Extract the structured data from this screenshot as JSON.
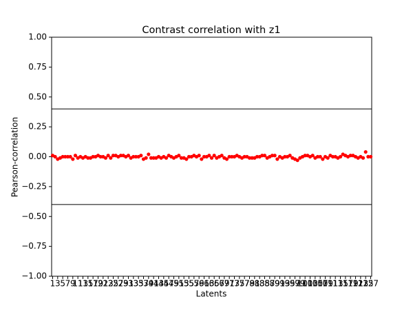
{
  "chart_data": {
    "type": "scatter",
    "title": "Contrast correlation with z1",
    "x_label": "Latents",
    "y_label": "Pearson-correlation",
    "x": [
      1,
      2,
      3,
      4,
      5,
      6,
      7,
      8,
      9,
      10,
      11,
      12,
      13,
      14,
      15,
      16,
      17,
      18,
      19,
      20,
      21,
      22,
      23,
      24,
      25,
      26,
      27,
      28,
      29,
      30,
      31,
      32,
      33,
      34,
      35,
      36,
      37,
      38,
      39,
      40,
      41,
      42,
      43,
      44,
      45,
      46,
      47,
      48,
      49,
      50,
      51,
      52,
      53,
      54,
      55,
      56,
      57,
      58,
      59,
      60,
      61,
      62,
      63,
      64,
      65,
      66,
      67,
      68,
      69,
      70,
      71,
      72,
      73,
      74,
      75,
      76,
      77,
      78,
      79,
      80,
      81,
      82,
      83,
      84,
      85,
      86,
      87,
      88,
      89,
      90,
      91,
      92,
      93,
      94,
      95,
      96,
      97,
      98,
      99,
      100,
      101,
      102,
      103,
      104,
      105,
      106,
      107,
      108,
      109,
      110,
      111,
      112,
      113,
      114,
      115,
      116,
      117,
      118,
      119,
      120,
      121,
      122,
      123,
      124,
      125,
      126,
      127
    ],
    "values": [
      0.01,
      0.0,
      -0.02,
      -0.01,
      0.0,
      0.0,
      0.0,
      0.0,
      -0.02,
      0.01,
      -0.01,
      0.0,
      -0.01,
      0.0,
      -0.01,
      -0.01,
      0.0,
      0.0,
      0.01,
      0.0,
      0.0,
      -0.01,
      0.01,
      -0.01,
      0.01,
      0.01,
      0.0,
      0.01,
      0.01,
      0.0,
      0.01,
      -0.01,
      0.0,
      0.0,
      0.0,
      0.01,
      -0.02,
      -0.01,
      0.02,
      -0.01,
      -0.01,
      -0.01,
      0.0,
      -0.01,
      0.0,
      -0.01,
      0.01,
      0.0,
      -0.01,
      0.0,
      0.01,
      -0.01,
      -0.01,
      -0.02,
      0.0,
      0.0,
      0.01,
      0.0,
      0.01,
      -0.02,
      0.0,
      0.0,
      0.01,
      -0.01,
      0.01,
      -0.01,
      0.0,
      0.01,
      -0.01,
      -0.02,
      0.0,
      0.0,
      0.0,
      0.01,
      0.0,
      -0.01,
      0.0,
      0.0,
      -0.01,
      -0.01,
      -0.01,
      0.0,
      0.0,
      0.01,
      0.01,
      -0.01,
      0.0,
      0.01,
      0.01,
      -0.02,
      0.0,
      -0.01,
      0.0,
      0.0,
      0.01,
      -0.01,
      -0.02,
      -0.03,
      -0.01,
      0.0,
      0.01,
      0.01,
      0.0,
      0.01,
      -0.01,
      0.0,
      0.0,
      -0.02,
      0.0,
      -0.01,
      0.01,
      0.0,
      0.0,
      -0.01,
      0.0,
      0.02,
      0.01,
      0.0,
      0.01,
      0.01,
      0.0,
      -0.01,
      0.0,
      -0.01,
      0.04,
      0.0,
      0.0
    ],
    "color": "#ff0000",
    "reference_lines": [
      0.4,
      -0.4
    ],
    "xlim": [
      0.6,
      127.4
    ],
    "xticks": [
      1,
      3,
      5,
      7,
      9,
      11,
      13,
      15,
      17,
      19,
      21,
      23,
      25,
      27,
      29,
      31,
      33,
      35,
      37,
      39,
      41,
      43,
      45,
      47,
      49,
      51,
      53,
      55,
      57,
      59,
      61,
      63,
      65,
      67,
      69,
      71,
      73,
      75,
      77,
      79,
      81,
      83,
      85,
      87,
      89,
      91,
      93,
      95,
      97,
      99,
      101,
      103,
      105,
      107,
      109,
      111,
      113,
      115,
      117,
      119,
      121,
      123,
      125,
      127
    ],
    "ylim": [
      -1,
      1
    ],
    "yticks": [
      {
        "value": -1,
        "label": "−1.00"
      },
      {
        "value": -0.75,
        "label": "−0.75"
      },
      {
        "value": -0.5,
        "label": "−0.50"
      },
      {
        "value": -0.25,
        "label": "−0.25"
      },
      {
        "value": 0,
        "label": "0.00"
      },
      {
        "value": 0.25,
        "label": "0.25"
      },
      {
        "value": 0.5,
        "label": "0.50"
      },
      {
        "value": 0.75,
        "label": "0.75"
      },
      {
        "value": 1,
        "label": "1.00"
      }
    ]
  }
}
